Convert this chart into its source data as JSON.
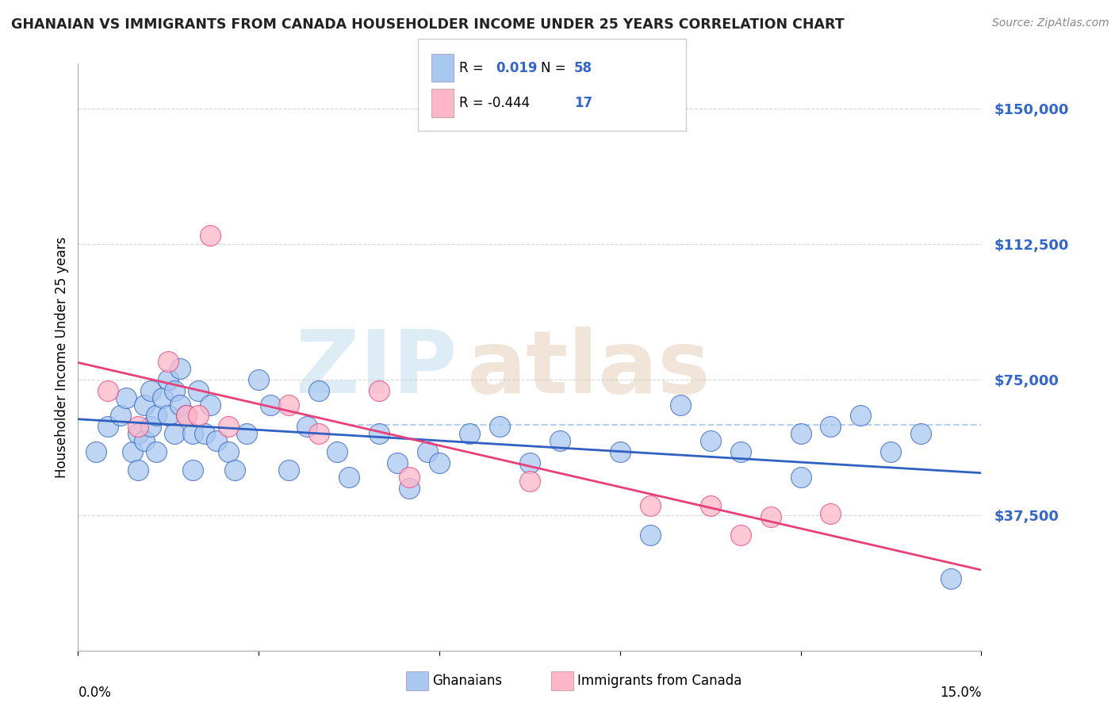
{
  "title": "GHANAIAN VS IMMIGRANTS FROM CANADA HOUSEHOLDER INCOME UNDER 25 YEARS CORRELATION CHART",
  "source": "Source: ZipAtlas.com",
  "ylabel": "Householder Income Under 25 years",
  "xmin": 0.0,
  "xmax": 15.0,
  "ymin": 0,
  "ymax": 162500,
  "yticks": [
    37500,
    75000,
    112500,
    150000
  ],
  "ytick_labels": [
    "$37,500",
    "$75,000",
    "$112,500",
    "$150,000"
  ],
  "legend_r1": "R =  0.019",
  "legend_n1": "N = 58",
  "legend_r2": "R = -0.444",
  "legend_n2": "N = 17",
  "label1": "Ghanaians",
  "label2": "Immigrants from Canada",
  "color_blue": "#a8c8f0",
  "color_pink": "#ffb6c8",
  "line_blue": "#3060c0",
  "line_pink": "#e8407a",
  "title_color": "#222222",
  "axis_label_color": "#3366cc",
  "watermark_zip_color": "#c8e0f0",
  "watermark_atlas_color": "#e8d4c0",
  "dashed_line_y": 62500,
  "ghanaian_x": [
    0.3,
    0.5,
    0.7,
    0.8,
    0.9,
    1.0,
    1.0,
    1.1,
    1.1,
    1.2,
    1.2,
    1.3,
    1.3,
    1.4,
    1.5,
    1.5,
    1.6,
    1.6,
    1.7,
    1.7,
    1.8,
    1.9,
    1.9,
    2.0,
    2.1,
    2.2,
    2.3,
    2.5,
    2.6,
    2.8,
    3.0,
    3.2,
    3.5,
    3.8,
    4.0,
    4.3,
    4.5,
    5.0,
    5.3,
    5.5,
    5.8,
    6.0,
    6.5,
    7.0,
    7.5,
    8.0,
    9.0,
    9.5,
    10.0,
    10.5,
    11.0,
    12.0,
    12.0,
    12.5,
    13.0,
    13.5,
    14.0,
    14.5
  ],
  "ghanaian_y": [
    55000,
    62000,
    65000,
    70000,
    55000,
    60000,
    50000,
    68000,
    58000,
    72000,
    62000,
    65000,
    55000,
    70000,
    75000,
    65000,
    72000,
    60000,
    78000,
    68000,
    65000,
    60000,
    50000,
    72000,
    60000,
    68000,
    58000,
    55000,
    50000,
    60000,
    75000,
    68000,
    50000,
    62000,
    72000,
    55000,
    48000,
    60000,
    52000,
    45000,
    55000,
    52000,
    60000,
    62000,
    52000,
    58000,
    55000,
    32000,
    68000,
    58000,
    55000,
    60000,
    48000,
    62000,
    65000,
    55000,
    60000,
    20000
  ],
  "canada_x": [
    0.5,
    1.0,
    1.5,
    1.8,
    2.0,
    2.2,
    2.5,
    3.5,
    4.0,
    5.0,
    5.5,
    7.5,
    9.5,
    10.5,
    11.0,
    11.5,
    12.5
  ],
  "canada_y": [
    72000,
    62000,
    80000,
    65000,
    65000,
    115000,
    62000,
    68000,
    60000,
    72000,
    48000,
    47000,
    40000,
    40000,
    32000,
    37000,
    38000
  ]
}
